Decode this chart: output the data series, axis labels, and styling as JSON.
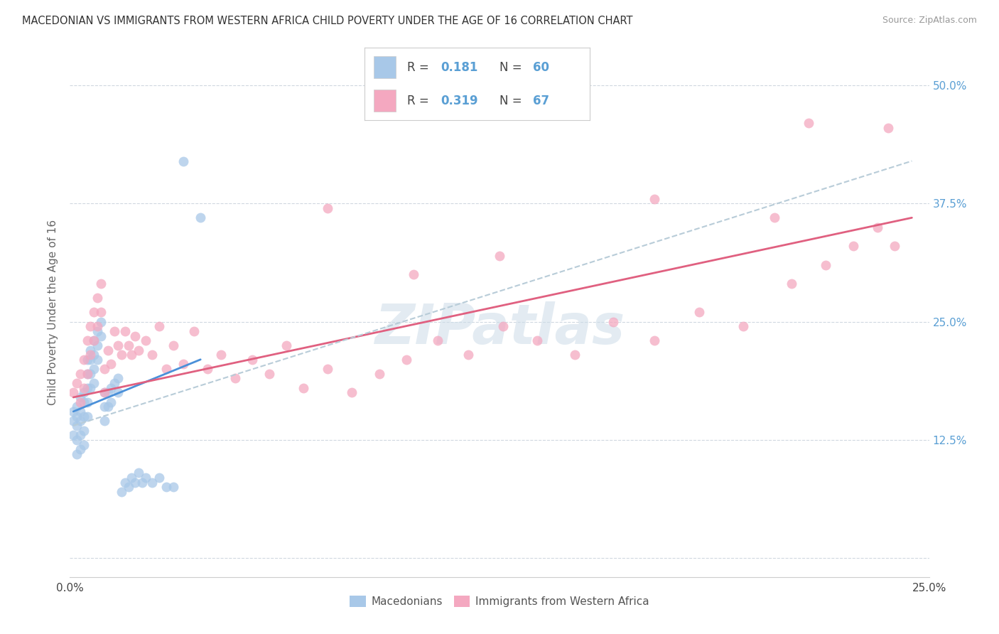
{
  "title": "MACEDONIAN VS IMMIGRANTS FROM WESTERN AFRICA CHILD POVERTY UNDER THE AGE OF 16 CORRELATION CHART",
  "source": "Source: ZipAtlas.com",
  "ylabel": "Child Poverty Under the Age of 16",
  "xlim": [
    0.0,
    0.25
  ],
  "ylim": [
    -0.02,
    0.54
  ],
  "R_mac": 0.181,
  "N_mac": 60,
  "R_west": 0.319,
  "N_west": 67,
  "mac_color": "#a8c8e8",
  "west_color": "#f4a8c0",
  "mac_line_color": "#4a90d9",
  "west_line_color": "#e06080",
  "trend_line_color": "#b8ccd8",
  "legend_label_mac": "Macedonians",
  "legend_label_west": "Immigrants from Western Africa",
  "watermark": "ZIPatlas",
  "mac_x": [
    0.001,
    0.001,
    0.001,
    0.002,
    0.002,
    0.002,
    0.002,
    0.002,
    0.003,
    0.003,
    0.003,
    0.003,
    0.003,
    0.004,
    0.004,
    0.004,
    0.004,
    0.004,
    0.005,
    0.005,
    0.005,
    0.005,
    0.005,
    0.006,
    0.006,
    0.006,
    0.006,
    0.007,
    0.007,
    0.007,
    0.007,
    0.008,
    0.008,
    0.008,
    0.009,
    0.009,
    0.01,
    0.01,
    0.01,
    0.011,
    0.011,
    0.012,
    0.012,
    0.013,
    0.014,
    0.014,
    0.015,
    0.016,
    0.017,
    0.018,
    0.019,
    0.02,
    0.021,
    0.022,
    0.024,
    0.026,
    0.028,
    0.03,
    0.033,
    0.038
  ],
  "mac_y": [
    0.155,
    0.145,
    0.13,
    0.16,
    0.15,
    0.14,
    0.125,
    0.11,
    0.17,
    0.155,
    0.145,
    0.13,
    0.115,
    0.175,
    0.165,
    0.15,
    0.135,
    0.12,
    0.21,
    0.195,
    0.18,
    0.165,
    0.15,
    0.22,
    0.21,
    0.195,
    0.18,
    0.23,
    0.215,
    0.2,
    0.185,
    0.24,
    0.225,
    0.21,
    0.25,
    0.235,
    0.175,
    0.16,
    0.145,
    0.175,
    0.16,
    0.18,
    0.165,
    0.185,
    0.19,
    0.175,
    0.07,
    0.08,
    0.075,
    0.085,
    0.08,
    0.09,
    0.08,
    0.085,
    0.08,
    0.085,
    0.075,
    0.075,
    0.42,
    0.36
  ],
  "west_x": [
    0.001,
    0.002,
    0.003,
    0.003,
    0.004,
    0.004,
    0.005,
    0.005,
    0.006,
    0.006,
    0.007,
    0.007,
    0.008,
    0.008,
    0.009,
    0.009,
    0.01,
    0.01,
    0.011,
    0.012,
    0.013,
    0.014,
    0.015,
    0.016,
    0.017,
    0.018,
    0.019,
    0.02,
    0.022,
    0.024,
    0.026,
    0.028,
    0.03,
    0.033,
    0.036,
    0.04,
    0.044,
    0.048,
    0.053,
    0.058,
    0.063,
    0.068,
    0.075,
    0.082,
    0.09,
    0.098,
    0.107,
    0.116,
    0.126,
    0.136,
    0.147,
    0.158,
    0.17,
    0.183,
    0.196,
    0.21,
    0.22,
    0.228,
    0.235,
    0.24,
    0.205,
    0.215,
    0.125,
    0.1,
    0.17,
    0.075,
    0.238
  ],
  "west_y": [
    0.175,
    0.185,
    0.165,
    0.195,
    0.18,
    0.21,
    0.195,
    0.23,
    0.215,
    0.245,
    0.23,
    0.26,
    0.245,
    0.275,
    0.26,
    0.29,
    0.2,
    0.175,
    0.22,
    0.205,
    0.24,
    0.225,
    0.215,
    0.24,
    0.225,
    0.215,
    0.235,
    0.22,
    0.23,
    0.215,
    0.245,
    0.2,
    0.225,
    0.205,
    0.24,
    0.2,
    0.215,
    0.19,
    0.21,
    0.195,
    0.225,
    0.18,
    0.2,
    0.175,
    0.195,
    0.21,
    0.23,
    0.215,
    0.245,
    0.23,
    0.215,
    0.25,
    0.23,
    0.26,
    0.245,
    0.29,
    0.31,
    0.33,
    0.35,
    0.33,
    0.36,
    0.46,
    0.32,
    0.3,
    0.38,
    0.37,
    0.455
  ],
  "mac_line_x": [
    0.001,
    0.038
  ],
  "mac_line_y": [
    0.155,
    0.21
  ],
  "west_line_x": [
    0.001,
    0.245
  ],
  "west_line_y": [
    0.17,
    0.36
  ],
  "dash_line_x": [
    0.001,
    0.245
  ],
  "dash_line_y": [
    0.14,
    0.42
  ]
}
